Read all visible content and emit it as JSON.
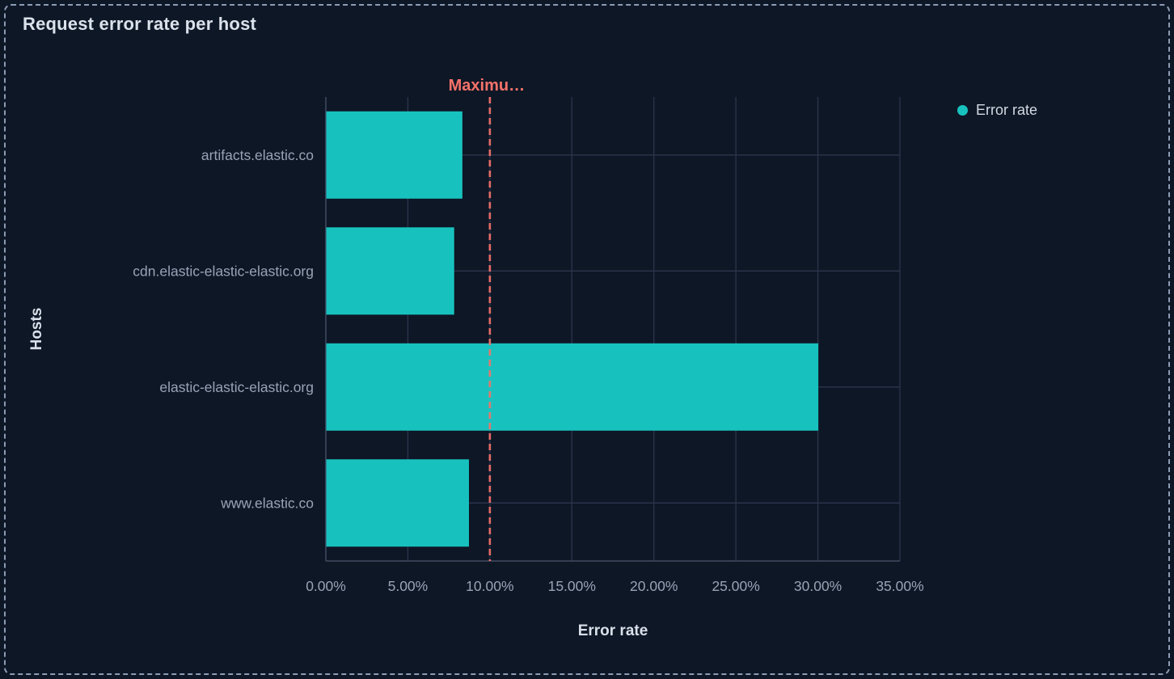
{
  "chart_data": {
    "type": "bar",
    "orientation": "horizontal",
    "title": "Request error rate per host",
    "xlabel": "Error rate",
    "ylabel": "Hosts",
    "categories": [
      "artifacts.elastic.co",
      "cdn.elastic-elastic-elastic.org",
      "elastic-elastic-elastic.org",
      "www.elastic.co"
    ],
    "series": [
      {
        "name": "Error rate",
        "color": "#17c2be",
        "values": [
          8.3,
          7.8,
          30,
          8.7
        ]
      }
    ],
    "value_unit": "%",
    "xlim": [
      0,
      35
    ],
    "x_ticks": [
      0,
      5,
      10,
      15,
      20,
      25,
      30,
      35
    ],
    "x_tick_labels": [
      "0.00%",
      "5.00%",
      "10.00%",
      "15.00%",
      "20.00%",
      "25.00%",
      "30.00%",
      "35.00%"
    ],
    "grid": true,
    "legend_position": "top-right",
    "annotation": {
      "label": "Maximu…",
      "value": 10,
      "color": "#f6726a",
      "style": "dashed"
    }
  },
  "colors": {
    "background": "#0e1726",
    "panel_border": "#8c9cb4",
    "grid_line": "#293349",
    "axis_line": "#404b61",
    "tick_text": "#98a3b6",
    "title_text": "#dbe2ec",
    "bar": "#17c2be",
    "annotation": "#f6726a"
  }
}
